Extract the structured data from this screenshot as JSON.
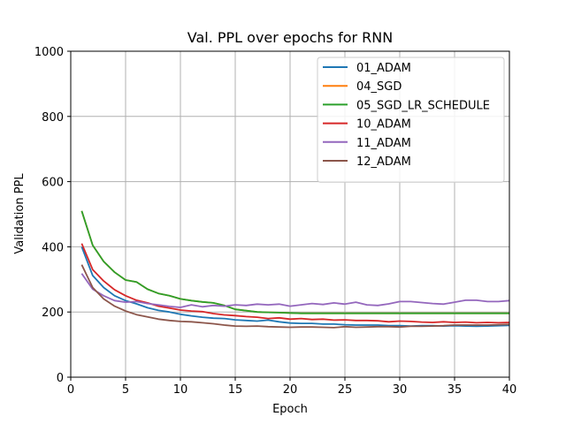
{
  "chart_data": {
    "type": "line",
    "title": "Val. PPL over epochs for RNN",
    "xlabel": "Epoch",
    "ylabel": "Validation PPL",
    "xlim": [
      0,
      40
    ],
    "ylim": [
      0,
      1000
    ],
    "xticks": [
      0,
      5,
      10,
      15,
      20,
      25,
      30,
      35,
      40
    ],
    "yticks": [
      0,
      200,
      400,
      600,
      800,
      1000
    ],
    "grid": true,
    "legend_position": "top-right",
    "x": [
      1,
      2,
      3,
      4,
      5,
      6,
      7,
      8,
      9,
      10,
      11,
      12,
      13,
      14,
      15,
      16,
      17,
      18,
      19,
      20,
      21,
      22,
      23,
      24,
      25,
      26,
      27,
      28,
      29,
      30,
      31,
      32,
      33,
      34,
      35,
      36,
      37,
      38,
      39,
      40
    ],
    "series": [
      {
        "name": "01_ADAM",
        "color": "#1f77b4",
        "values": [
          400,
          312,
          275,
          250,
          235,
          225,
          213,
          205,
          200,
          193,
          188,
          184,
          181,
          180,
          176,
          174,
          172,
          175,
          170,
          166,
          165,
          165,
          163,
          163,
          161,
          160,
          160,
          160,
          158,
          158,
          157,
          158,
          158,
          157,
          158,
          157,
          156,
          157,
          158,
          159
        ]
      },
      {
        "name": "04_SGD",
        "color": "#ff7f0e",
        "values": [
          510,
          405,
          355,
          322,
          298,
          292,
          270,
          257,
          250,
          240,
          235,
          231,
          228,
          220,
          208,
          204,
          200,
          199,
          198,
          197,
          196,
          196,
          196,
          196,
          196,
          196,
          196,
          196,
          196,
          196,
          196,
          196,
          196,
          196,
          196,
          196,
          196,
          196,
          196,
          196
        ]
      },
      {
        "name": "05_SGD_LR_SCHEDULE",
        "color": "#2ca02c",
        "values": [
          510,
          405,
          355,
          322,
          298,
          292,
          270,
          257,
          250,
          240,
          235,
          231,
          228,
          220,
          208,
          204,
          200,
          199,
          198,
          197,
          196,
          196,
          196,
          196,
          196,
          196,
          196,
          196,
          196,
          196,
          196,
          196,
          196,
          196,
          196,
          196,
          196,
          196,
          196,
          196
        ]
      },
      {
        "name": "10_ADAM",
        "color": "#d62728",
        "values": [
          410,
          330,
          295,
          268,
          250,
          236,
          228,
          218,
          212,
          206,
          203,
          201,
          195,
          191,
          189,
          186,
          184,
          180,
          182,
          178,
          180,
          177,
          178,
          175,
          176,
          174,
          174,
          173,
          170,
          172,
          171,
          169,
          168,
          170,
          168,
          169,
          167,
          168,
          167,
          168
        ]
      },
      {
        "name": "11_ADAM",
        "color": "#9467bd",
        "values": [
          318,
          270,
          250,
          235,
          230,
          232,
          226,
          222,
          217,
          214,
          222,
          216,
          220,
          218,
          222,
          220,
          224,
          222,
          224,
          218,
          222,
          226,
          223,
          228,
          224,
          230,
          222,
          220,
          225,
          232,
          232,
          229,
          226,
          224,
          230,
          236,
          236,
          232,
          232,
          235
        ]
      },
      {
        "name": "12_ADAM",
        "color": "#8c564b",
        "values": [
          345,
          275,
          240,
          218,
          203,
          192,
          185,
          178,
          174,
          171,
          170,
          167,
          164,
          160,
          157,
          156,
          157,
          155,
          154,
          153,
          154,
          154,
          153,
          152,
          155,
          153,
          154,
          155,
          155,
          154,
          156,
          156,
          157,
          158,
          160,
          160,
          160,
          160,
          161,
          162
        ]
      }
    ]
  }
}
